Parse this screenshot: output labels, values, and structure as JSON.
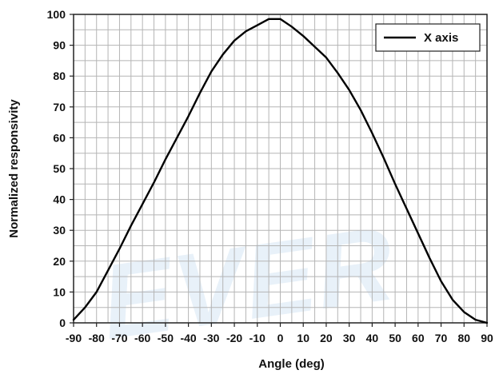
{
  "chart_data": {
    "type": "line",
    "title": "",
    "xlabel": "Angle (deg)",
    "ylabel": "Normalized responsivity",
    "xlim": [
      -90,
      90
    ],
    "ylim": [
      0,
      100
    ],
    "x_ticks": [
      -90,
      -80,
      -70,
      -60,
      -50,
      -40,
      -30,
      -20,
      -10,
      0,
      10,
      20,
      30,
      40,
      50,
      60,
      70,
      80,
      90
    ],
    "y_ticks": [
      0,
      10,
      20,
      30,
      40,
      50,
      60,
      70,
      80,
      90,
      100
    ],
    "grid": true,
    "legend_position": "top-right",
    "watermark": "EVER",
    "series": [
      {
        "name": "X axis",
        "color": "#000000",
        "x": [
          -90,
          -85,
          -80,
          -75,
          -70,
          -65,
          -60,
          -55,
          -50,
          -45,
          -40,
          -35,
          -30,
          -25,
          -20,
          -15,
          -10,
          -5,
          0,
          5,
          10,
          15,
          20,
          25,
          30,
          35,
          40,
          45,
          50,
          55,
          60,
          65,
          70,
          75,
          80,
          85,
          90
        ],
        "y": [
          1,
          5,
          10,
          17,
          24,
          31.5,
          38.5,
          45.5,
          53,
          60,
          67,
          74.5,
          81.5,
          87,
          91.5,
          94.5,
          96.5,
          98.5,
          98.5,
          96,
          93,
          89.5,
          86,
          81,
          75.5,
          69,
          61.5,
          53.5,
          45,
          37,
          29,
          21,
          13.5,
          7.5,
          3.5,
          1,
          0
        ]
      }
    ]
  }
}
